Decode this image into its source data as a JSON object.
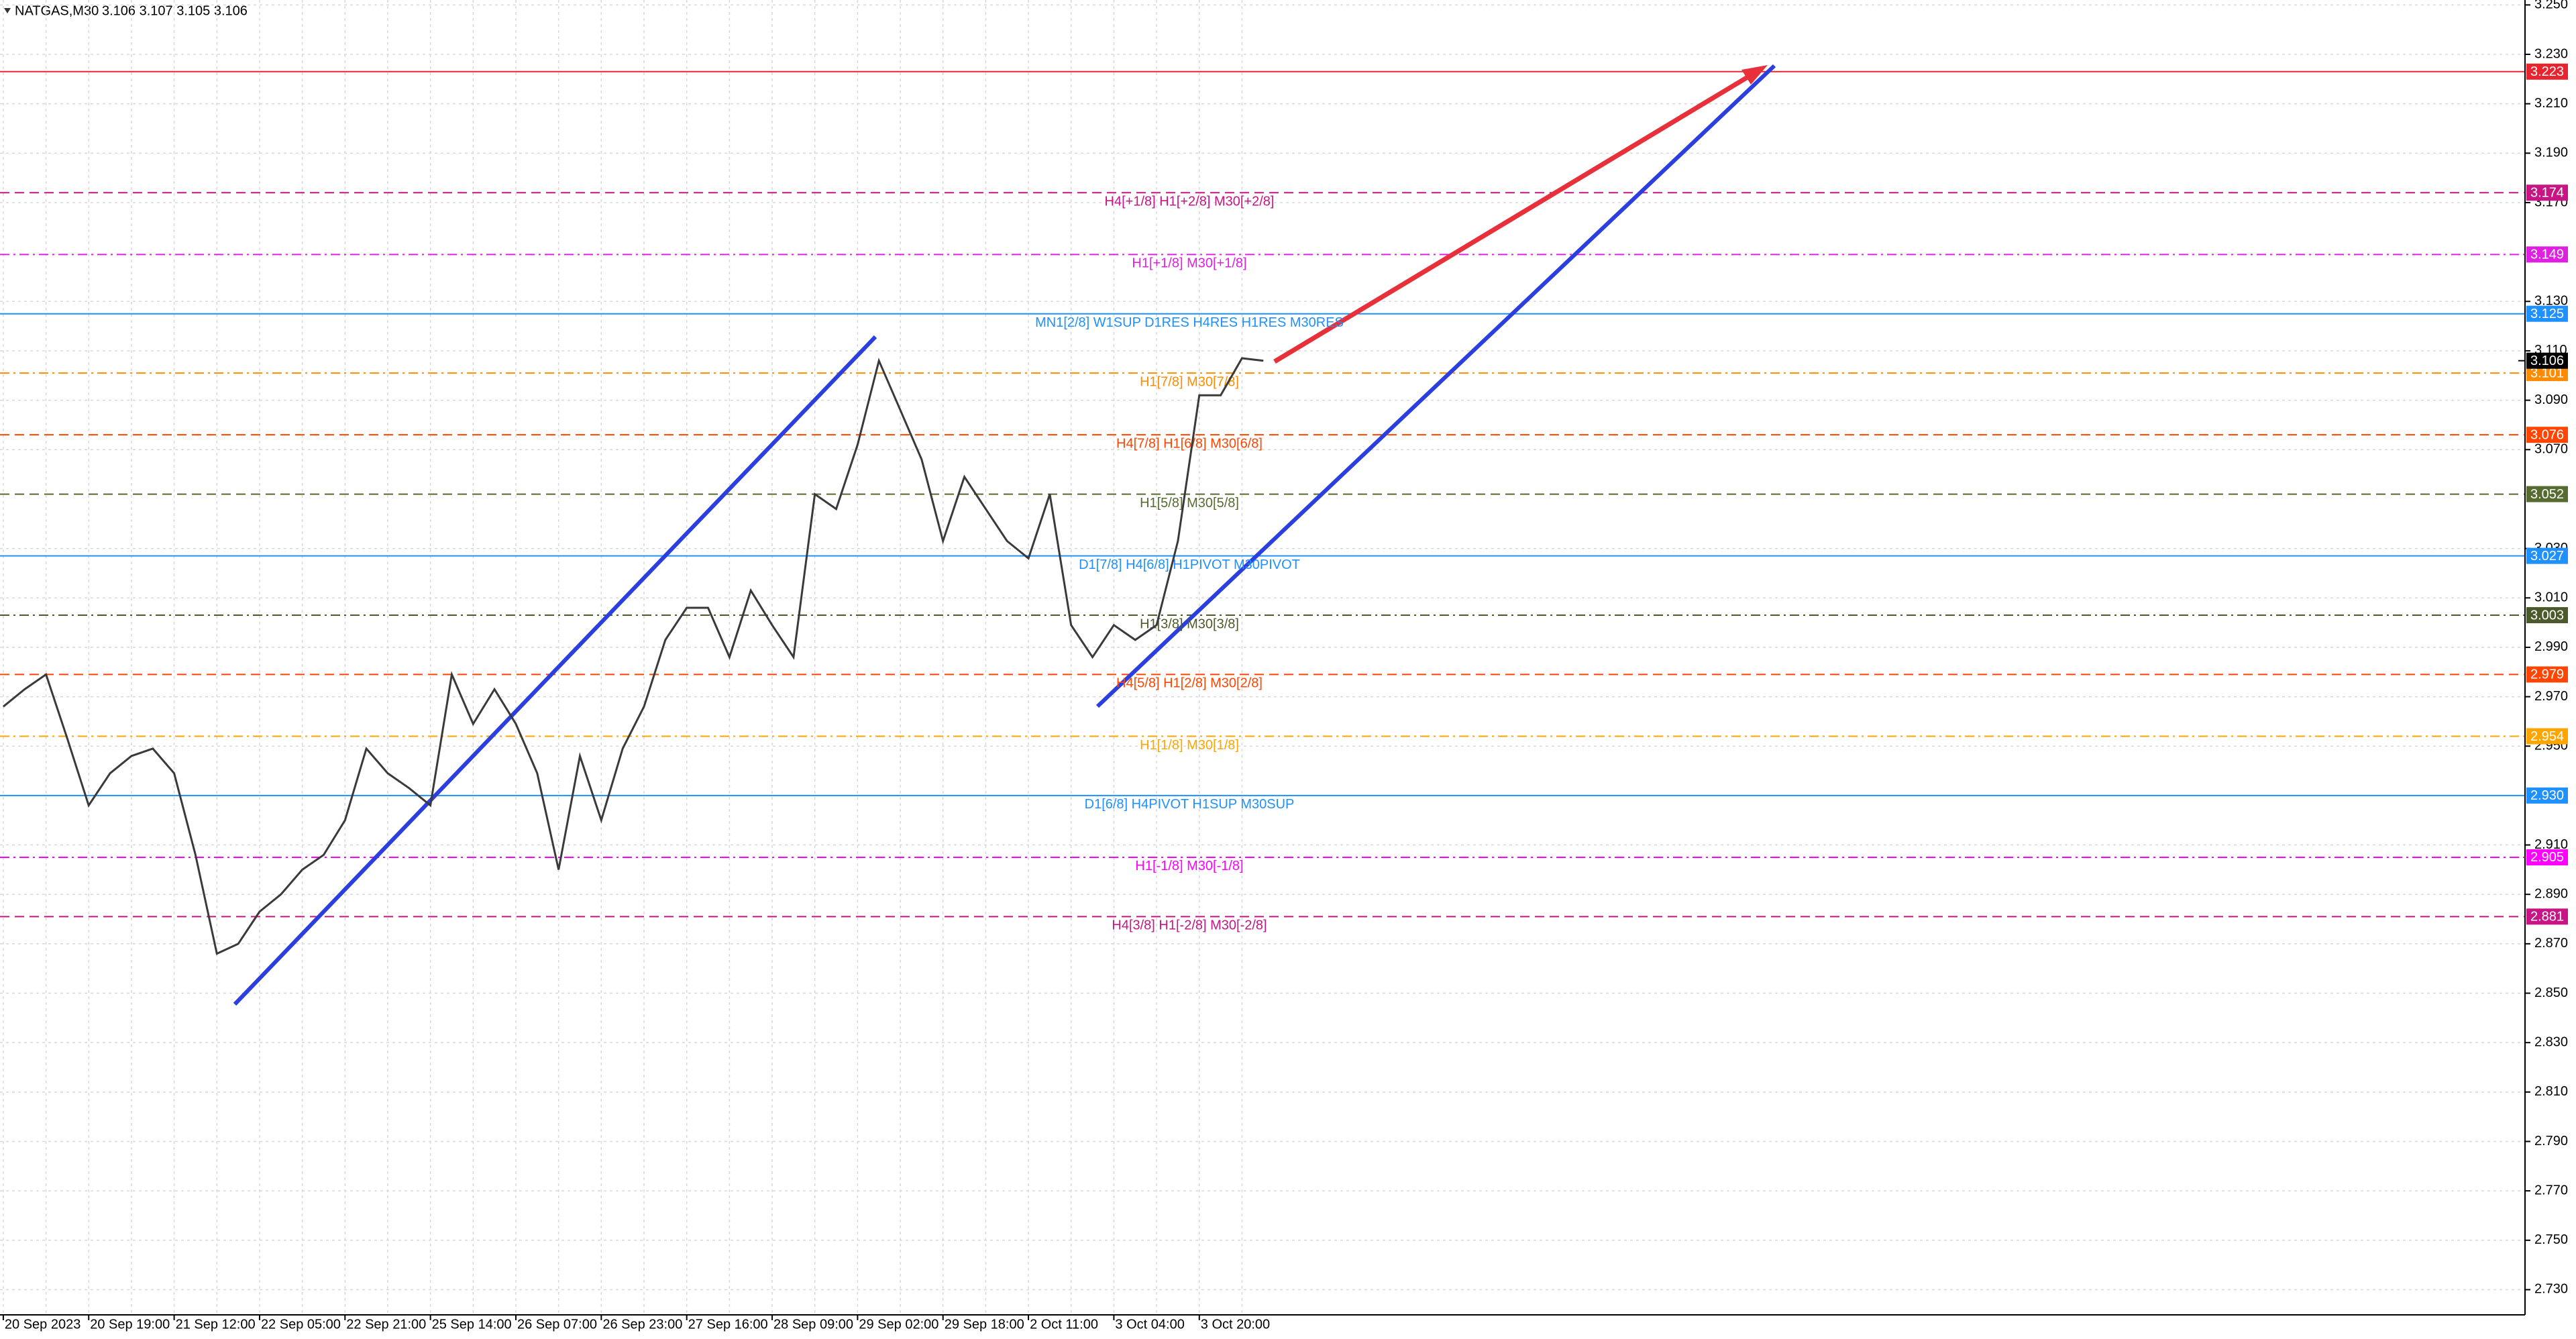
{
  "chart_data": {
    "type": "line",
    "title": "NATGAS,M30",
    "quote": "3.106 3.107 3.105 3.106",
    "categories": [
      "20 Sep 2023",
      null,
      null,
      null,
      "20 Sep 19:00",
      null,
      null,
      null,
      "21 Sep 12:00",
      null,
      null,
      null,
      "22 Sep 05:00",
      null,
      null,
      null,
      "22 Sep 21:00",
      null,
      null,
      null,
      "25 Sep 14:00",
      null,
      null,
      null,
      "26 Sep 07:00",
      null,
      null,
      null,
      "26 Sep 23:00",
      null,
      null,
      null,
      "27 Sep 16:00",
      null,
      null,
      null,
      "28 Sep 09:00",
      null,
      null,
      null,
      "29 Sep 02:00",
      null,
      null,
      null,
      "29 Sep 18:00",
      null,
      null,
      null,
      "2 Oct 11:00",
      null,
      null,
      null,
      "3 Oct 04:00",
      null,
      null,
      null,
      "3 Oct 20:00",
      null,
      null,
      null
    ],
    "series": [
      {
        "name": "NATGAS",
        "color": "#3a3a3a",
        "values": [
          2.966,
          2.973,
          2.979,
          2.953,
          2.926,
          2.939,
          2.946,
          2.949,
          2.939,
          2.906,
          2.866,
          2.87,
          2.883,
          2.89,
          2.9,
          2.906,
          2.92,
          2.949,
          2.939,
          2.933,
          2.926,
          2.979,
          2.959,
          2.973,
          2.959,
          2.939,
          2.9,
          2.946,
          2.92,
          2.949,
          2.966,
          2.993,
          3.006,
          3.006,
          2.986,
          3.013,
          2.999,
          2.986,
          3.052,
          3.046,
          3.072,
          3.106,
          3.086,
          3.066,
          3.033,
          3.059,
          3.046,
          3.033,
          3.026,
          3.052,
          2.999,
          2.986,
          2.999,
          2.993,
          2.999,
          3.033,
          3.092,
          3.092,
          3.107,
          3.106
        ]
      }
    ],
    "ylim": [
      2.73,
      3.25
    ],
    "yticks": [
      {
        "value": 3.25,
        "label": "3.250"
      },
      {
        "value": 3.23,
        "label": "3.230"
      },
      {
        "value": 3.21,
        "label": "3.210"
      },
      {
        "value": 3.19,
        "label": "3.190"
      },
      {
        "value": 3.17,
        "label": "3.170"
      },
      {
        "value": 3.13,
        "label": "3.130"
      },
      {
        "value": 3.11,
        "label": "3.110"
      },
      {
        "value": 3.09,
        "label": "3.090"
      },
      {
        "value": 3.07,
        "label": "3.070"
      },
      {
        "value": 3.03,
        "label": "3.030"
      },
      {
        "value": 3.01,
        "label": "3.010"
      },
      {
        "value": 2.99,
        "label": "2.990"
      },
      {
        "value": 2.97,
        "label": "2.970"
      },
      {
        "value": 2.95,
        "label": "2.950"
      },
      {
        "value": 2.91,
        "label": "2.910"
      },
      {
        "value": 2.89,
        "label": "2.890"
      },
      {
        "value": 2.87,
        "label": "2.870"
      },
      {
        "value": 2.85,
        "label": "2.850"
      },
      {
        "value": 2.83,
        "label": "2.830"
      },
      {
        "value": 2.81,
        "label": "2.810"
      },
      {
        "value": 2.79,
        "label": "2.790"
      },
      {
        "value": 2.77,
        "label": "2.770"
      },
      {
        "value": 2.75,
        "label": "2.750"
      },
      {
        "value": 2.73,
        "label": "2.730"
      }
    ],
    "grid": true,
    "last_price": {
      "value": 3.106,
      "label": "3.106"
    },
    "levels": [
      {
        "value": 3.223,
        "label": "3.223",
        "color": "#e8252f",
        "dash": "solid"
      },
      {
        "value": 3.174,
        "label": "3.174",
        "color": "#c71585",
        "dash": "dashed",
        "text": "H4[+1/8] H1[+2/8] M30[+2/8]"
      },
      {
        "value": 3.149,
        "label": "3.149",
        "color": "#e020e0",
        "dash": "dashdot",
        "text": "H1[+1/8] M30[+1/8]"
      },
      {
        "value": 3.125,
        "label": "3.125",
        "color": "#1e90ff",
        "dash": "solid",
        "text": "MN1[2/8] W1SUP D1RES H4RES H1RES M30RES"
      },
      {
        "value": 3.101,
        "label": "3.101",
        "color": "#ff8c00",
        "dash": "dashdot",
        "text": "H1[7/8] M30[7/8]"
      },
      {
        "value": 3.076,
        "label": "3.076",
        "color": "#ff4500",
        "dash": "dashed",
        "text": "H4[7/8] H1[6/8] M30[6/8]"
      },
      {
        "value": 3.052,
        "label": "3.052",
        "color": "#556b2f",
        "dash": "dashed",
        "text": "H1[5/8] M30[5/8]"
      },
      {
        "value": 3.027,
        "label": "3.027",
        "color": "#1e90ff",
        "dash": "solid",
        "text": "D1[7/8] H4[6/8] H1PIVOT M30PIVOT"
      },
      {
        "value": 3.003,
        "label": "3.003",
        "color": "#4b5a2a",
        "dash": "dashdot",
        "text": "H1[3/8] M30[3/8]"
      },
      {
        "value": 2.979,
        "label": "2.979",
        "color": "#ff4500",
        "dash": "dashed",
        "text": "H4[5/8] H1[2/8] M30[2/8]"
      },
      {
        "value": 2.954,
        "label": "2.954",
        "color": "#ffa500",
        "dash": "dashdot",
        "text": "H1[1/8] M30[1/8]"
      },
      {
        "value": 2.93,
        "label": "2.930",
        "color": "#1e90ff",
        "dash": "solid",
        "text": "D1[6/8] H4PIVOT H1SUP M30SUP"
      },
      {
        "value": 2.905,
        "label": "2.905",
        "color": "#ff00ff",
        "dash": "dashdot",
        "text": "H1[-1/8] M30[-1/8]"
      },
      {
        "value": 2.881,
        "label": "2.881",
        "color": "#c71585",
        "dash": "dashed",
        "text": "H4[3/8] H1[-2/8] M30[-2/8]"
      }
    ]
  }
}
